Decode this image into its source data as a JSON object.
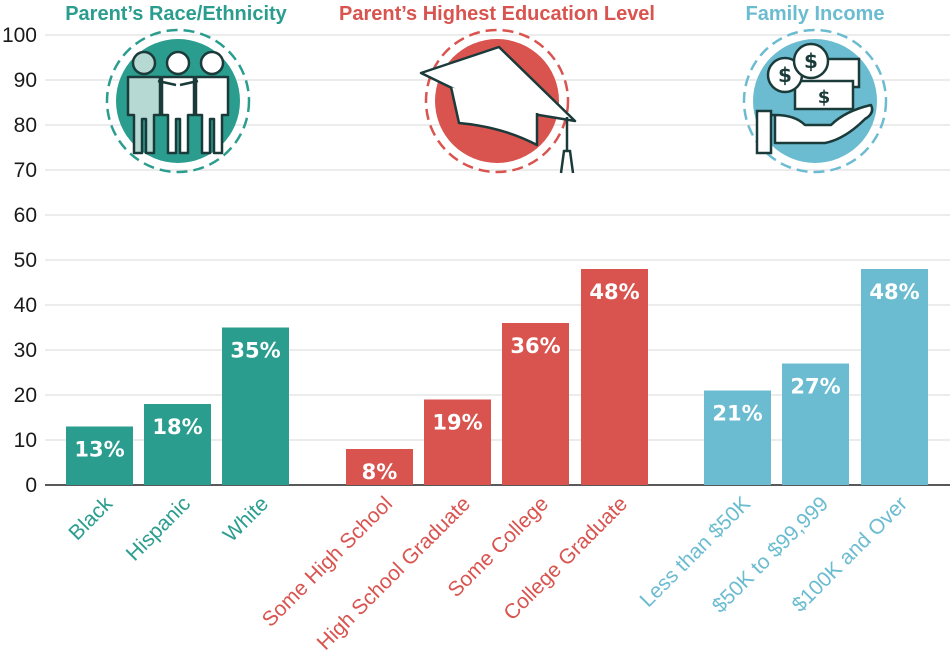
{
  "chart_data": {
    "type": "bar",
    "ylim": [
      0,
      100
    ],
    "yticks": [
      0,
      10,
      20,
      30,
      40,
      50,
      60,
      70,
      80,
      90,
      100
    ],
    "grid": true,
    "colors": {
      "race": "#2a9d8f",
      "education": "#d9534f",
      "income": "#6bbcd1",
      "icon_dark": "#1b3a3a"
    },
    "groups": [
      {
        "key": "race",
        "title": "Parent’s Race/Ethnicity",
        "icon": "people-icon",
        "categories": [
          "Black",
          "Hispanic",
          "White"
        ],
        "values": [
          13,
          18,
          35
        ],
        "labels": [
          "13%",
          "18%",
          "35%"
        ]
      },
      {
        "key": "education",
        "title": "Parent’s Highest Education Level",
        "icon": "graduation-cap-icon",
        "categories": [
          "Some High School",
          "High School Graduate",
          "Some College",
          "College Graduate"
        ],
        "values": [
          8,
          19,
          36,
          48
        ],
        "labels": [
          "8%",
          "19%",
          "36%",
          "48%"
        ]
      },
      {
        "key": "income",
        "title": "Family Income",
        "icon": "money-hand-icon",
        "categories": [
          "Less than $50K",
          "$50K to $99,999",
          "$100K and Over"
        ],
        "values": [
          21,
          27,
          48
        ],
        "labels": [
          "21%",
          "27%",
          "48%"
        ]
      }
    ]
  }
}
